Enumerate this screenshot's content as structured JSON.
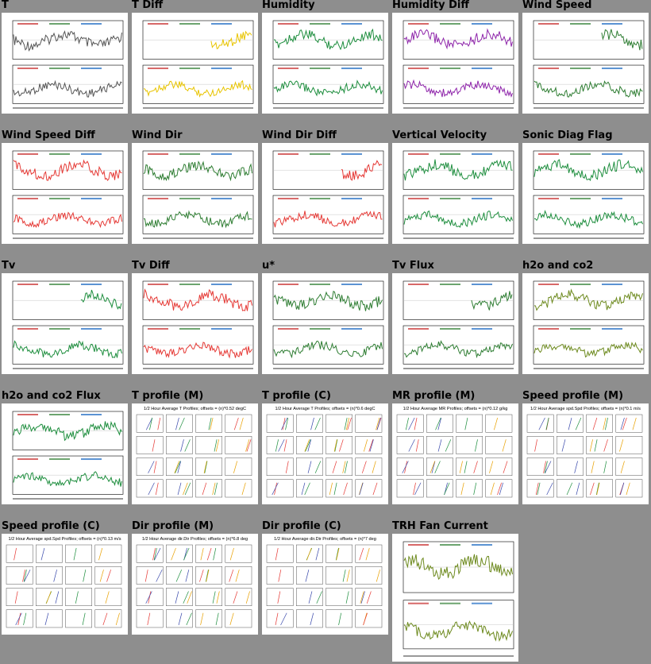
{
  "gallery": {
    "cells": [
      {
        "title": "T",
        "kind": "ts",
        "color": "#555555"
      },
      {
        "title": "T Diff",
        "kind": "ts",
        "color": "#e8c400"
      },
      {
        "title": "Humidity",
        "kind": "ts",
        "color": "#1e8e3e"
      },
      {
        "title": "Humidity Diff",
        "kind": "ts",
        "color": "#8e24aa"
      },
      {
        "title": "Wind Speed",
        "kind": "ts",
        "color": "#2e7d32"
      },
      {
        "title": "Wind Speed Diff",
        "kind": "ts",
        "color": "#e53935"
      },
      {
        "title": "Wind Dir",
        "kind": "ts",
        "color": "#2e7d32"
      },
      {
        "title": "Wind Dir Diff",
        "kind": "ts",
        "color": "#e53935"
      },
      {
        "title": "Vertical Velocity",
        "kind": "ts",
        "color": "#1e8e3e"
      },
      {
        "title": "Sonic Diag Flag",
        "kind": "ts",
        "color": "#1e8e3e"
      },
      {
        "title": "Tv",
        "kind": "ts",
        "color": "#1e8e3e"
      },
      {
        "title": "Tv Diff",
        "kind": "ts",
        "color": "#e53935"
      },
      {
        "title": "u*",
        "kind": "ts",
        "color": "#2e7d32"
      },
      {
        "title": "Tv Flux",
        "kind": "ts",
        "color": "#2e7d32"
      },
      {
        "title": "h2o and co2",
        "kind": "ts",
        "color": "#6d8a1e"
      },
      {
        "title": "h2o and co2 Flux",
        "kind": "ts",
        "color": "#1e8e3e"
      },
      {
        "title": "T profile (M)",
        "kind": "profile",
        "color": "#3949ab",
        "header": "1/2 Hour Average T Profiles; offsets = (n)*0.52 degC"
      },
      {
        "title": "T profile (C)",
        "kind": "profile",
        "color": "#e53935",
        "header": "1/2 Hour Average T Profiles; offsets = (n)*0.6 degC"
      },
      {
        "title": "MR profile (M)",
        "kind": "profile",
        "color": "#e8a000",
        "header": "1/2 Hour Average MR Profiles; offsets = (n)*0.12 g/kg"
      },
      {
        "title": "Speed profile (M)",
        "kind": "profile",
        "color": "#3949ab",
        "header": "1/2 Hour Average spd.Spd Profiles; offsets = (n)*0.1 m/s"
      },
      {
        "title": "Speed profile (C)",
        "kind": "profile",
        "color": "#1e8e3e",
        "header": "1/2 Hour Average spd.Spd Profiles; offsets = (n)*0.13 m/s"
      },
      {
        "title": "Dir profile (M)",
        "kind": "profile",
        "color": "#e8a000",
        "header": "1/2 Hour Average dir.Dir Profiles; offsets = (n)*6.8 deg"
      },
      {
        "title": "Dir profile (C)",
        "kind": "profile",
        "color": "#e8a000",
        "header": "1/2 Hour Average dir.Dir Profiles; offsets = (n)*7 deg"
      },
      {
        "title": "TRH Fan Current",
        "kind": "ts",
        "color": "#6d8a1e",
        "wide": true
      }
    ]
  }
}
